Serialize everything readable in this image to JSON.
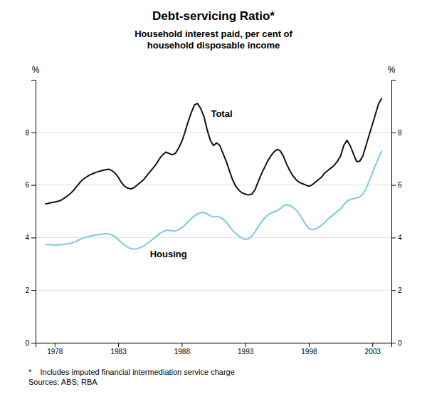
{
  "chart_data": {
    "type": "line",
    "title": "Debt-servicing Ratio*",
    "subtitle": "Household interest paid, per cent of\nhousehold disposable income",
    "ylabel": "%",
    "y2label": "%",
    "footnote": "*    Includes imputed financial intermediation service charge\nSources: ABS; RBA",
    "xlim": [
      1976.5,
      2004.5
    ],
    "xticks": [
      1978,
      1983,
      1988,
      1993,
      1998,
      2003
    ],
    "ylim": [
      0,
      10
    ],
    "yticks": [
      0,
      2,
      4,
      6,
      8
    ],
    "y2lim": [
      0,
      10
    ],
    "y2ticks": [
      0,
      2,
      4,
      6,
      8
    ],
    "grid": true,
    "x": [
      1977.25,
      1977.5,
      1977.75,
      1978,
      1978.25,
      1978.5,
      1978.75,
      1979,
      1979.25,
      1979.5,
      1979.75,
      1980,
      1980.25,
      1980.5,
      1980.75,
      1981,
      1981.25,
      1981.5,
      1981.75,
      1982,
      1982.25,
      1982.5,
      1982.75,
      1983,
      1983.25,
      1983.5,
      1983.75,
      1984,
      1984.25,
      1984.5,
      1984.75,
      1985,
      1985.25,
      1985.5,
      1985.75,
      1986,
      1986.25,
      1986.5,
      1986.75,
      1987,
      1987.25,
      1987.5,
      1987.75,
      1988,
      1988.25,
      1988.5,
      1988.75,
      1989,
      1989.25,
      1989.5,
      1989.75,
      1990,
      1990.25,
      1990.5,
      1990.75,
      1991,
      1991.25,
      1991.5,
      1991.75,
      1992,
      1992.25,
      1992.5,
      1992.75,
      1993,
      1993.25,
      1993.5,
      1993.75,
      1994,
      1994.25,
      1994.5,
      1994.75,
      1995,
      1995.25,
      1995.5,
      1995.75,
      1996,
      1996.25,
      1996.5,
      1996.75,
      1997,
      1997.25,
      1997.5,
      1997.75,
      1998,
      1998.25,
      1998.5,
      1998.75,
      1999,
      1999.25,
      1999.5,
      1999.75,
      2000,
      2000.25,
      2000.5,
      2000.75,
      2001,
      2001.25,
      2001.5,
      2001.75,
      2002,
      2002.25,
      2002.5,
      2002.75,
      2003,
      2003.25,
      2003.5,
      2003.75
    ],
    "series": [
      {
        "name": "Total",
        "color": "#111111",
        "values": [
          5.28,
          5.3,
          5.33,
          5.35,
          5.38,
          5.42,
          5.5,
          5.58,
          5.68,
          5.8,
          5.95,
          6.1,
          6.22,
          6.3,
          6.38,
          6.43,
          6.48,
          6.52,
          6.55,
          6.58,
          6.6,
          6.55,
          6.45,
          6.3,
          6.1,
          5.95,
          5.88,
          5.85,
          5.9,
          6.0,
          6.1,
          6.2,
          6.35,
          6.5,
          6.65,
          6.8,
          7.0,
          7.15,
          7.25,
          7.2,
          7.15,
          7.2,
          7.4,
          7.65,
          8.0,
          8.4,
          8.75,
          9.05,
          9.1,
          8.9,
          8.6,
          8.1,
          7.7,
          7.5,
          7.6,
          7.5,
          7.2,
          6.9,
          6.55,
          6.2,
          5.95,
          5.8,
          5.7,
          5.65,
          5.62,
          5.65,
          5.8,
          6.1,
          6.4,
          6.65,
          6.9,
          7.1,
          7.25,
          7.35,
          7.3,
          7.1,
          6.8,
          6.55,
          6.35,
          6.2,
          6.1,
          6.05,
          6.0,
          5.95,
          6.0,
          6.1,
          6.2,
          6.3,
          6.45,
          6.55,
          6.65,
          6.75,
          6.9,
          7.1,
          7.5,
          7.7,
          7.5,
          7.2,
          6.9,
          6.9,
          7.1,
          7.5,
          7.9,
          8.3,
          8.7,
          9.1,
          9.3
        ]
      },
      {
        "name": "Housing",
        "color": "#7ec8e3",
        "values": [
          3.75,
          3.73,
          3.72,
          3.72,
          3.72,
          3.73,
          3.74,
          3.76,
          3.78,
          3.82,
          3.87,
          3.93,
          3.98,
          4.02,
          4.05,
          4.07,
          4.1,
          4.12,
          4.13,
          4.15,
          4.14,
          4.1,
          4.03,
          3.92,
          3.82,
          3.72,
          3.63,
          3.58,
          3.56,
          3.58,
          3.62,
          3.68,
          3.76,
          3.85,
          3.95,
          4.05,
          4.15,
          4.22,
          4.27,
          4.28,
          4.25,
          4.25,
          4.3,
          4.38,
          4.48,
          4.6,
          4.72,
          4.82,
          4.9,
          4.95,
          4.95,
          4.9,
          4.83,
          4.78,
          4.8,
          4.78,
          4.7,
          4.58,
          4.43,
          4.28,
          4.15,
          4.05,
          3.98,
          3.93,
          3.95,
          4.05,
          4.2,
          4.4,
          4.58,
          4.73,
          4.85,
          4.93,
          4.98,
          5.02,
          5.1,
          5.2,
          5.25,
          5.22,
          5.15,
          5.05,
          4.9,
          4.7,
          4.5,
          4.35,
          4.3,
          4.32,
          4.38,
          4.47,
          4.58,
          4.7,
          4.8,
          4.9,
          5.0,
          5.1,
          5.25,
          5.38,
          5.45,
          5.48,
          5.5,
          5.55,
          5.65,
          5.85,
          6.15,
          6.45,
          6.75,
          7.05,
          7.3
        ]
      }
    ],
    "annotations": [
      {
        "text": "Total",
        "x": 1990.3,
        "y": 8.6
      },
      {
        "text": "Housing",
        "x": 1985.5,
        "y": 3.25
      }
    ]
  }
}
